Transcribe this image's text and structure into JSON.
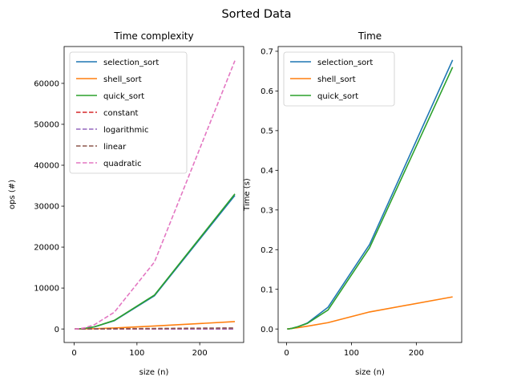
{
  "figure": {
    "suptitle": "Sorted Data"
  },
  "chart_data": [
    {
      "type": "line",
      "title": "Time complexity",
      "xlabel": "size (n)",
      "ylabel": "ops (#)",
      "xlim": [
        -16,
        270
      ],
      "ylim": [
        -3300,
        69000
      ],
      "xticks": [
        0,
        100,
        200
      ],
      "yticks": [
        0,
        10000,
        20000,
        30000,
        40000,
        50000,
        60000
      ],
      "grid": false,
      "legend": "upper-left",
      "x": [
        1,
        2,
        4,
        8,
        16,
        32,
        64,
        128,
        256
      ],
      "series": [
        {
          "name": "selection_sort",
          "color": "#1f77b4",
          "dash": "solid",
          "values": [
            0,
            1,
            6,
            28,
            120,
            496,
            2016,
            8128,
            32640
          ]
        },
        {
          "name": "shell_sort",
          "color": "#ff7f0e",
          "dash": "solid",
          "values": [
            0,
            1,
            4,
            12,
            32,
            80,
            240,
            720,
            1800
          ]
        },
        {
          "name": "quick_sort",
          "color": "#2ca02c",
          "dash": "solid",
          "values": [
            0,
            1,
            6,
            28,
            130,
            520,
            2100,
            8300,
            33000
          ]
        },
        {
          "name": "constant",
          "color": "#d62728",
          "dash": "dashed",
          "values": [
            1,
            1,
            1,
            1,
            1,
            1,
            1,
            1,
            1
          ]
        },
        {
          "name": "logarithmic",
          "color": "#9467bd",
          "dash": "dashed",
          "values": [
            0,
            1,
            2,
            3,
            4,
            5,
            6,
            7,
            8
          ]
        },
        {
          "name": "linear",
          "color": "#8c564b",
          "dash": "dashed",
          "values": [
            1,
            2,
            4,
            8,
            16,
            32,
            64,
            128,
            256
          ]
        },
        {
          "name": "quadratic",
          "color": "#e377c2",
          "dash": "dashed",
          "values": [
            1,
            4,
            16,
            64,
            256,
            1024,
            4096,
            16384,
            65536
          ]
        }
      ]
    },
    {
      "type": "line",
      "title": "Time",
      "xlabel": "size (n)",
      "ylabel": "Time (s)",
      "xlim": [
        -13,
        270
      ],
      "ylim": [
        -0.034,
        0.712
      ],
      "xticks": [
        0,
        100,
        200
      ],
      "yticks": [
        0.0,
        0.1,
        0.2,
        0.3,
        0.4,
        0.5,
        0.6,
        0.7
      ],
      "grid": false,
      "legend": "upper-left",
      "x": [
        1,
        2,
        4,
        8,
        16,
        32,
        64,
        128,
        256
      ],
      "series": [
        {
          "name": "selection_sort",
          "color": "#1f77b4",
          "dash": "solid",
          "values": [
            0.0,
            0.0002,
            0.0005,
            0.0015,
            0.005,
            0.015,
            0.055,
            0.213,
            0.678
          ]
        },
        {
          "name": "shell_sort",
          "color": "#ff7f0e",
          "dash": "solid",
          "values": [
            0.0,
            0.0002,
            0.0005,
            0.0015,
            0.003,
            0.007,
            0.016,
            0.043,
            0.081
          ]
        },
        {
          "name": "quick_sort",
          "color": "#2ca02c",
          "dash": "solid",
          "values": [
            0.0,
            0.0002,
            0.0005,
            0.0015,
            0.005,
            0.014,
            0.048,
            0.205,
            0.66
          ]
        }
      ]
    }
  ]
}
